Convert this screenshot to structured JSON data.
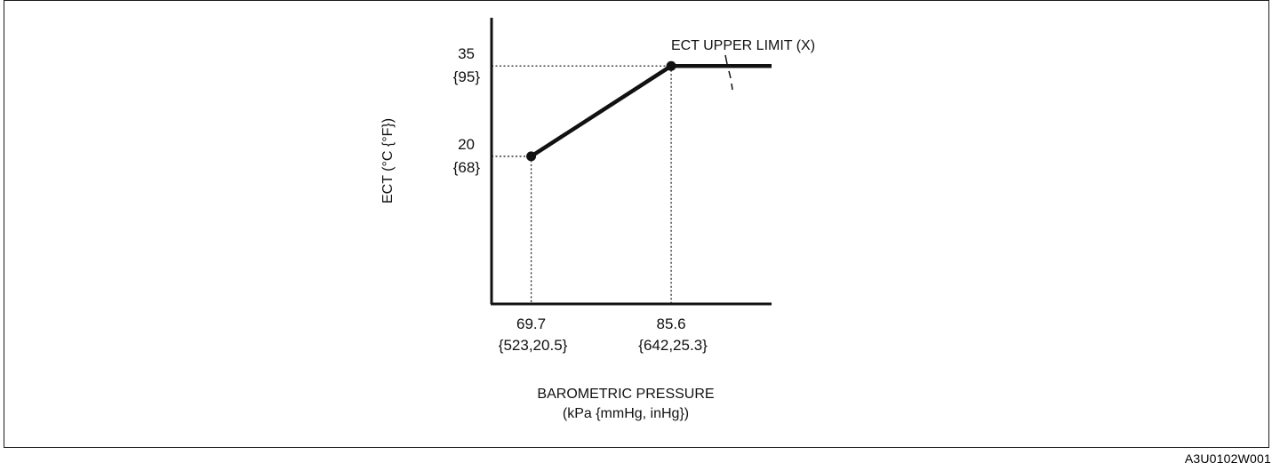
{
  "figure_code": "A3U0102W001",
  "colors": {
    "line": "#111111",
    "guide": "#222222",
    "frame": "#1a1a1a"
  },
  "chart_data": {
    "type": "line",
    "title": "",
    "xlabel_lines": [
      "BAROMETRIC PRESSURE",
      "(kPa {mmHg, inHg})"
    ],
    "ylabel": "ECT (°C {°F})",
    "series": [
      {
        "points": [
          {
            "x": 69.7,
            "y": 20
          },
          {
            "x": 85.6,
            "y": 35
          },
          {
            "x": 97,
            "y": 35
          }
        ]
      }
    ],
    "marked_points": [
      {
        "x": 69.7,
        "y": 20
      },
      {
        "x": 85.6,
        "y": 35
      }
    ],
    "x_ticks": [
      {
        "value": 69.7,
        "label": "69.7",
        "sublabel": "{523,20.5}"
      },
      {
        "value": 85.6,
        "label": "85.6",
        "sublabel": "{642,25.3}"
      }
    ],
    "y_ticks": [
      {
        "value": 35,
        "label": "35",
        "sublabel": "{95}"
      },
      {
        "value": 20,
        "label": "20",
        "sublabel": "{68}"
      }
    ],
    "xlim": [
      65.2,
      97
    ],
    "ylim": [
      -4.5,
      43
    ],
    "guide_lines": "dotted",
    "annotations": [
      {
        "text": "ECT UPPER LIMIT (X)",
        "target": {
          "x": 92,
          "y": 35
        }
      }
    ],
    "grid": false,
    "legend": "none"
  }
}
